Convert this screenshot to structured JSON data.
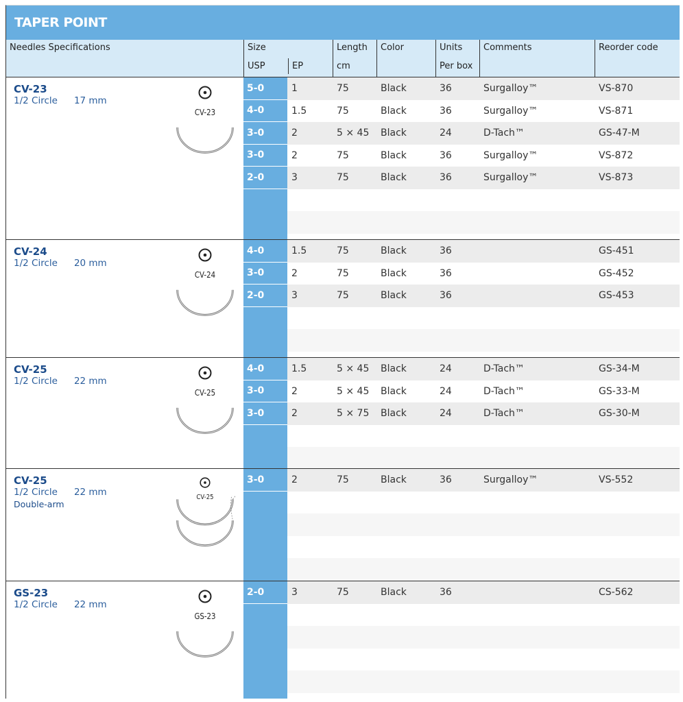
{
  "title": "TAPER POINT",
  "headers": {
    "spec": "Needles Specifications",
    "size": "Size",
    "usp": "USP",
    "ep": "EP",
    "length": "Length",
    "length_unit": "cm",
    "color": "Color",
    "units": "Units",
    "units_sub": "Per box",
    "comments": "Comments",
    "reorder": "Reorder code"
  },
  "groups": [
    {
      "name": "CV-23",
      "shape": "1/2 Circle",
      "size": "17 mm",
      "extra": "",
      "figure": "CV-23",
      "double": false,
      "height": 237,
      "rows": [
        [
          "5-0",
          "1",
          "75",
          "Black",
          "36",
          "Surgalloy™",
          "VS-870"
        ],
        [
          "4-0",
          "1.5",
          "75",
          "Black",
          "36",
          "Surgalloy™",
          "VS-871"
        ],
        [
          "3-0",
          "2",
          "5 × 45",
          "Black",
          "24",
          "D-Tach™",
          "GS-47-M"
        ],
        [
          "3-0",
          "2",
          "75",
          "Black",
          "36",
          "Surgalloy™",
          "VS-872"
        ],
        [
          "2-0",
          "3",
          "75",
          "Black",
          "36",
          "Surgalloy™",
          "VS-873"
        ]
      ]
    },
    {
      "name": "CV-24",
      "shape": "1/2 Circle",
      "size": "20 mm",
      "extra": "",
      "figure": "CV-24",
      "double": false,
      "height": 172,
      "rows": [
        [
          "4-0",
          "1.5",
          "75",
          "Black",
          "36",
          "",
          "GS-451"
        ],
        [
          "3-0",
          "2",
          "75",
          "Black",
          "36",
          "",
          "GS-452"
        ],
        [
          "2-0",
          "3",
          "75",
          "Black",
          "36",
          "",
          "GS-453"
        ]
      ]
    },
    {
      "name": "CV-25",
      "shape": "1/2 Circle",
      "size": "22 mm",
      "extra": "",
      "figure": "CV-25",
      "double": false,
      "height": 162,
      "rows": [
        [
          "4-0",
          "1.5",
          "5 × 45",
          "Black",
          "24",
          "D-Tach™",
          "GS-34-M"
        ],
        [
          "3-0",
          "2",
          "5 × 45",
          "Black",
          "24",
          "D-Tach™",
          "GS-33-M"
        ],
        [
          "3-0",
          "2",
          "5 × 75",
          "Black",
          "24",
          "D-Tach™",
          "GS-30-M"
        ]
      ]
    },
    {
      "name": "CV-25",
      "shape": "1/2 Circle",
      "size": "22 mm",
      "extra": "Double-arm",
      "figure": "CV-25",
      "double": true,
      "height": 164,
      "rows": [
        [
          "3-0",
          "2",
          "75",
          "Black",
          "36",
          "Surgalloy™",
          "VS-552"
        ]
      ]
    },
    {
      "name": "GS-23",
      "shape": "1/2 Circle",
      "size": "22 mm",
      "extra": "",
      "figure": "GS-23",
      "double": false,
      "height": 172,
      "rows": [
        [
          "2-0",
          "3",
          "75",
          "Black",
          "36",
          "",
          "CS-562"
        ]
      ]
    }
  ],
  "colors": {
    "header": "#68aee0",
    "subheader": "#d6eaf7",
    "name": "#1b4b8a"
  }
}
